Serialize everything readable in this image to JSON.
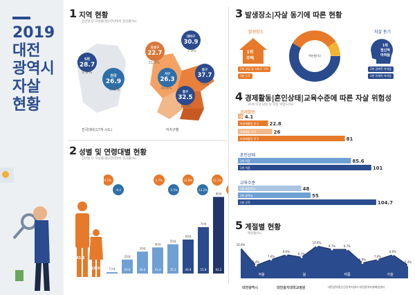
{
  "header": {
    "year": "2019",
    "line1": "대전",
    "line2": "광역시",
    "line3": "자살",
    "line4": "현황"
  },
  "s1": {
    "num": "1",
    "title": "지역 현황",
    "sub": "십만명 당 자살률(명)/전년대비 증감률(%)",
    "legend_national": "전국대비(17개 시도)",
    "legend_district": "자치구별",
    "kr": {
      "label": "5위",
      "value": "28.7",
      "delta": "1.6%"
    },
    "nat": {
      "label": "전국",
      "value": "26.9",
      "delta": "0.9%"
    },
    "yuseong": {
      "label": "유성구",
      "value": "22.7",
      "delta": "11.3%"
    },
    "daedeok": {
      "label": "대덕구",
      "value": "30.9",
      "delta": "7.9%"
    },
    "seo": {
      "label": "서구",
      "value": "26.3",
      "delta": "-10.6%"
    },
    "dong": {
      "label": "동구",
      "value": "37.7",
      "delta": "7.8%"
    },
    "jung": {
      "label": "중구",
      "value": "32.5",
      "delta": "11.8%"
    }
  },
  "s2": {
    "num": "2",
    "title": "성별 및 연령대별 현황",
    "sub": "십만명 당 자살률(명)/전년대비 증감률(%)",
    "male_val": "43.6",
    "female_val": "15.9",
    "pcts": [
      "9.1%",
      "-9.4",
      "2.7%",
      "-5.5%",
      "12.8%",
      "-13.2%",
      "12.1%",
      "4.4%",
      "13.2%"
    ],
    "ages": [
      "10대",
      "20대",
      "30대",
      "40대",
      "50대",
      "60대",
      "70대",
      "80대"
    ],
    "values": [
      0.3,
      16.8,
      26.4,
      31.4,
      35.2,
      40.9,
      55.8,
      92.2
    ]
  },
  "s3": {
    "num": "3",
    "title": "발생장소|자살 동기에 따른 현황",
    "place_label": "발생장소",
    "motive_label": "자살 동기",
    "house": "1위\n주택",
    "motive": "1위\n정신적\n어려움",
    "center": "백분율(%)",
    "p_tag1": "2위 상업 및 서비스 구역",
    "p_tag2": "3위 도로",
    "m_tag1": "2위 경제적 어려움",
    "m_tag2": "3위 육체적 어려움"
  },
  "s4": {
    "num": "4",
    "title": "경제활동|혼인상태|교육수준에 따른 자살 위험성",
    "sub": "35세 이상 남성 당 자살 위험도(%)",
    "econ": "경제활동",
    "marital": "혼인상태",
    "edu": "교육수준",
    "e_vals": [
      "4.1",
      "22.8",
      "26",
      "81"
    ],
    "m_vals": [
      "85.6",
      "101"
    ],
    "ed_vals": [
      "48",
      "55",
      "104.7"
    ],
    "e_rows": [
      "경제활동 인구",
      "비경제활동 인구",
      "경제활동 인구",
      "비경제활동 인구"
    ],
    "m_rows": [
      "1위 이혼",
      "1위 이혼"
    ],
    "ed_rows": [
      "1위 초등학교",
      "2위 중학교",
      "1위 무학"
    ]
  },
  "s5": {
    "num": "5",
    "title": "계절별 현황",
    "sub": "백분율(%)",
    "seasons": [
      "겨울",
      "봄",
      "여름",
      "가을"
    ],
    "vals": [
      "10.0%",
      "6.4%",
      "7.6%",
      "8.6%",
      "8.1%",
      "10.4%",
      "9.7%",
      "9.7%",
      "6.9%",
      "7.6%",
      "8.6%",
      "6.4%"
    ],
    "peak": "10.4%"
  },
  "footer": {
    "org1": "대전광역시",
    "org2": "대전을지대학교병원",
    "org3": "대전광역정신건강복지센터 대전광역자살예방센터"
  }
}
